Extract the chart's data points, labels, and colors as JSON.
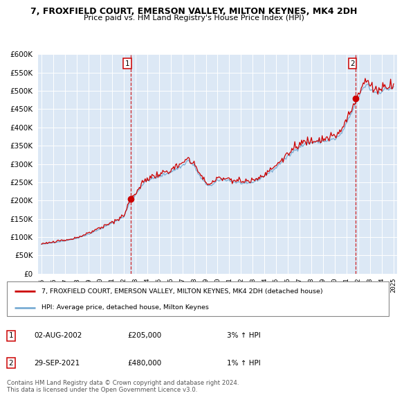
{
  "title": "7, FROXFIELD COURT, EMERSON VALLEY, MILTON KEYNES, MK4 2DH",
  "subtitle": "Price paid vs. HM Land Registry's House Price Index (HPI)",
  "legend_line1": "7, FROXFIELD COURT, EMERSON VALLEY, MILTON KEYNES, MK4 2DH (detached house)",
  "legend_line2": "HPI: Average price, detached house, Milton Keynes",
  "annotation1_date": "02-AUG-2002",
  "annotation1_price": "£205,000",
  "annotation1_hpi": "3% ↑ HPI",
  "annotation2_date": "29-SEP-2021",
  "annotation2_price": "£480,000",
  "annotation2_hpi": "1% ↑ HPI",
  "footnote": "Contains HM Land Registry data © Crown copyright and database right 2024.\nThis data is licensed under the Open Government Licence v3.0.",
  "hpi_color": "#7aadd4",
  "price_color": "#cc0000",
  "annotation_color": "#cc0000",
  "background_color": "#ffffff",
  "chart_bg_color": "#dce8f5",
  "grid_color": "#ffffff",
  "ylim": [
    0,
    600000
  ],
  "yticks": [
    0,
    50000,
    100000,
    150000,
    200000,
    250000,
    300000,
    350000,
    400000,
    450000,
    500000,
    550000,
    600000
  ],
  "marker1_x": 2002.58,
  "marker1_y": 205000,
  "marker2_x": 2021.75,
  "marker2_y": 480000,
  "xlim_start": 1994.7,
  "xlim_end": 2025.3
}
